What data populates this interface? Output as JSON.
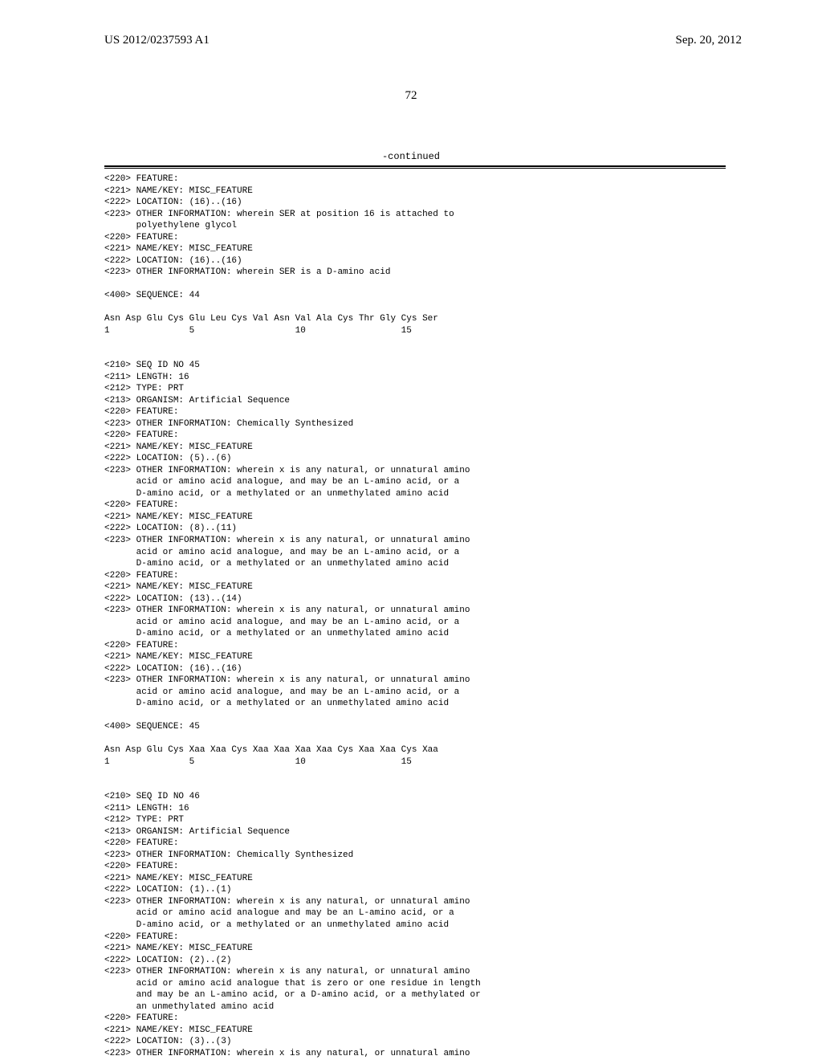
{
  "header": {
    "pub_number": "US 2012/0237593 A1",
    "pub_date": "Sep. 20, 2012"
  },
  "page_number": "72",
  "continued_label": "-continued",
  "listing": "<220> FEATURE:\n<221> NAME/KEY: MISC_FEATURE\n<222> LOCATION: (16)..(16)\n<223> OTHER INFORMATION: wherein SER at position 16 is attached to\n      polyethylene glycol\n<220> FEATURE:\n<221> NAME/KEY: MISC_FEATURE\n<222> LOCATION: (16)..(16)\n<223> OTHER INFORMATION: wherein SER is a D-amino acid\n\n<400> SEQUENCE: 44\n\nAsn Asp Glu Cys Glu Leu Cys Val Asn Val Ala Cys Thr Gly Cys Ser\n1               5                   10                  15\n\n\n<210> SEQ ID NO 45\n<211> LENGTH: 16\n<212> TYPE: PRT\n<213> ORGANISM: Artificial Sequence\n<220> FEATURE:\n<223> OTHER INFORMATION: Chemically Synthesized\n<220> FEATURE:\n<221> NAME/KEY: MISC_FEATURE\n<222> LOCATION: (5)..(6)\n<223> OTHER INFORMATION: wherein x is any natural, or unnatural amino\n      acid or amino acid analogue, and may be an L-amino acid, or a\n      D-amino acid, or a methylated or an unmethylated amino acid\n<220> FEATURE:\n<221> NAME/KEY: MISC_FEATURE\n<222> LOCATION: (8)..(11)\n<223> OTHER INFORMATION: wherein x is any natural, or unnatural amino\n      acid or amino acid analogue, and may be an L-amino acid, or a\n      D-amino acid, or a methylated or an unmethylated amino acid\n<220> FEATURE:\n<221> NAME/KEY: MISC_FEATURE\n<222> LOCATION: (13)..(14)\n<223> OTHER INFORMATION: wherein x is any natural, or unnatural amino\n      acid or amino acid analogue, and may be an L-amino acid, or a\n      D-amino acid, or a methylated or an unmethylated amino acid\n<220> FEATURE:\n<221> NAME/KEY: MISC_FEATURE\n<222> LOCATION: (16)..(16)\n<223> OTHER INFORMATION: wherein x is any natural, or unnatural amino\n      acid or amino acid analogue, and may be an L-amino acid, or a\n      D-amino acid, or a methylated or an unmethylated amino acid\n\n<400> SEQUENCE: 45\n\nAsn Asp Glu Cys Xaa Xaa Cys Xaa Xaa Xaa Xaa Cys Xaa Xaa Cys Xaa\n1               5                   10                  15\n\n\n<210> SEQ ID NO 46\n<211> LENGTH: 16\n<212> TYPE: PRT\n<213> ORGANISM: Artificial Sequence\n<220> FEATURE:\n<223> OTHER INFORMATION: Chemically Synthesized\n<220> FEATURE:\n<221> NAME/KEY: MISC_FEATURE\n<222> LOCATION: (1)..(1)\n<223> OTHER INFORMATION: wherein x is any natural, or unnatural amino\n      acid or amino acid analogue and may be an L-amino acid, or a\n      D-amino acid, or a methylated or an unmethylated amino acid\n<220> FEATURE:\n<221> NAME/KEY: MISC_FEATURE\n<222> LOCATION: (2)..(2)\n<223> OTHER INFORMATION: wherein x is any natural, or unnatural amino\n      acid or amino acid analogue that is zero or one residue in length\n      and may be an L-amino acid, or a D-amino acid, or a methylated or\n      an unmethylated amino acid\n<220> FEATURE:\n<221> NAME/KEY: MISC_FEATURE\n<222> LOCATION: (3)..(3)\n<223> OTHER INFORMATION: wherein x is any natural, or unnatural amino"
}
